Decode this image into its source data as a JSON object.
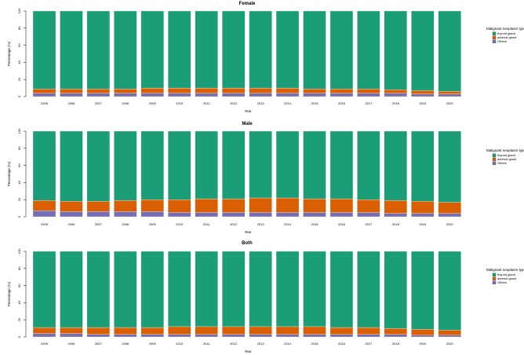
{
  "palette": {
    "thyroid": "#1b9e77",
    "adrenal": "#d95f02",
    "others": "#7570b3"
  },
  "legend": {
    "title": "Malignant neoplasm type",
    "items": [
      {
        "key": "thyroid",
        "label": "thyroid gland",
        "color": "#1b9e77"
      },
      {
        "key": "adrenal",
        "label": "adrenal gland",
        "color": "#d95f02"
      },
      {
        "key": "others",
        "label": "Others",
        "color": "#7570b3"
      }
    ]
  },
  "chart_data": [
    {
      "type": "bar",
      "stacked": true,
      "title": "Female",
      "xlabel": "Year",
      "ylabel": "Percentage (%)",
      "ylim": [
        0,
        100
      ],
      "yticks": [
        0,
        20,
        40,
        60,
        80,
        100
      ],
      "categories": [
        "2005",
        "2006",
        "2007",
        "2008",
        "2009",
        "2010",
        "2011",
        "2012",
        "2013",
        "2014",
        "2015",
        "2016",
        "2017",
        "2018",
        "2019",
        "2020"
      ],
      "series": [
        {
          "name": "Others",
          "key": "others",
          "values": [
            4,
            4,
            4,
            4,
            4,
            4,
            4,
            4,
            4,
            4,
            4,
            4,
            4,
            4,
            3,
            3
          ]
        },
        {
          "name": "adrenal gland",
          "key": "adrenal",
          "values": [
            5,
            5,
            5,
            5,
            6,
            6,
            6,
            6,
            6,
            6,
            5,
            5,
            5,
            4,
            4,
            3
          ]
        },
        {
          "name": "thyroid gland",
          "key": "thyroid",
          "values": [
            91,
            91,
            91,
            91,
            90,
            90,
            90,
            90,
            90,
            90,
            91,
            91,
            91,
            92,
            93,
            94
          ]
        }
      ],
      "legend_position": "right"
    },
    {
      "type": "bar",
      "stacked": true,
      "title": "Male",
      "xlabel": "Year",
      "ylabel": "Percentage (%)",
      "ylim": [
        0,
        100
      ],
      "yticks": [
        0,
        20,
        40,
        60,
        80,
        100
      ],
      "categories": [
        "2005",
        "2006",
        "2007",
        "2008",
        "2009",
        "2010",
        "2011",
        "2012",
        "2013",
        "2014",
        "2015",
        "2016",
        "2017",
        "2018",
        "2019",
        "2020"
      ],
      "series": [
        {
          "name": "Others",
          "key": "others",
          "values": [
            7,
            6,
            6,
            6,
            6,
            5,
            5,
            5,
            5,
            5,
            5,
            5,
            5,
            4,
            4,
            4
          ]
        },
        {
          "name": "adrenal gland",
          "key": "adrenal",
          "values": [
            12,
            12,
            12,
            13,
            14,
            15,
            16,
            16,
            17,
            17,
            16,
            16,
            15,
            15,
            14,
            13
          ]
        },
        {
          "name": "thyroid gland",
          "key": "thyroid",
          "values": [
            81,
            82,
            82,
            81,
            80,
            80,
            79,
            79,
            78,
            78,
            79,
            79,
            80,
            81,
            82,
            83
          ]
        }
      ],
      "legend_position": "right"
    },
    {
      "type": "bar",
      "stacked": true,
      "title": "Both",
      "xlabel": "Year",
      "ylabel": "Percentage (%)",
      "ylim": [
        0,
        100
      ],
      "yticks": [
        0,
        20,
        40,
        60,
        80,
        100
      ],
      "categories": [
        "2005",
        "2006",
        "2007",
        "2008",
        "2009",
        "2010",
        "2011",
        "2012",
        "2013",
        "2014",
        "2015",
        "2016",
        "2017",
        "2018",
        "2019",
        "2020"
      ],
      "series": [
        {
          "name": "Others",
          "key": "others",
          "values": [
            4,
            4,
            3,
            3,
            3,
            3,
            3,
            3,
            3,
            3,
            3,
            3,
            3,
            3,
            2,
            2
          ]
        },
        {
          "name": "adrenal gland",
          "key": "adrenal",
          "values": [
            7,
            7,
            8,
            8,
            8,
            9,
            9,
            9,
            9,
            9,
            9,
            8,
            8,
            7,
            7,
            6
          ]
        },
        {
          "name": "thyroid gland",
          "key": "thyroid",
          "values": [
            89,
            89,
            89,
            89,
            89,
            88,
            88,
            88,
            88,
            88,
            88,
            89,
            89,
            90,
            91,
            92
          ]
        }
      ],
      "legend_position": "right"
    }
  ]
}
